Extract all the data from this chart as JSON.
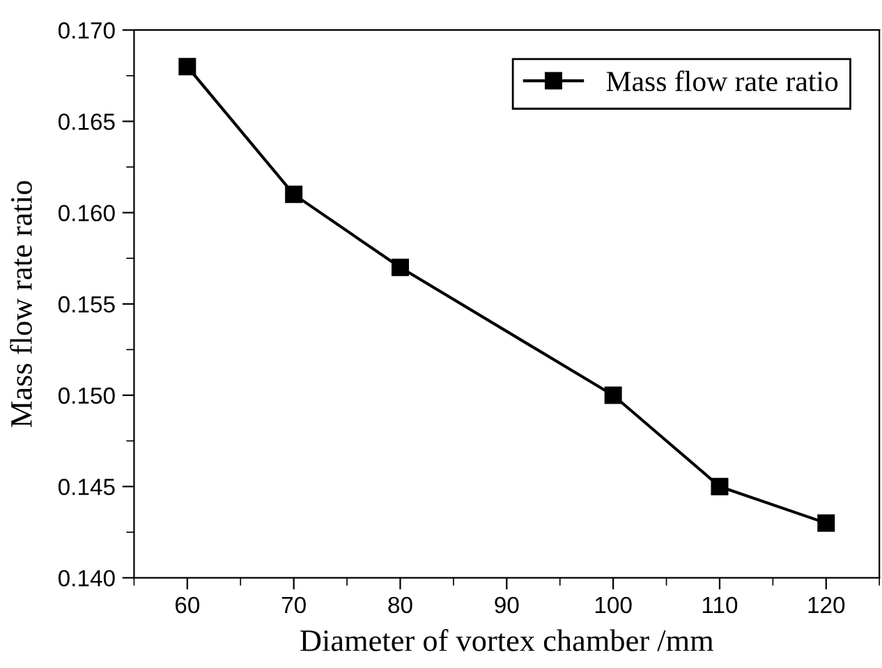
{
  "chart_data": {
    "type": "line",
    "xlabel": "Diameter of vortex chamber /mm",
    "ylabel": "Mass flow rate ratio",
    "x": [
      60,
      70,
      80,
      100,
      110,
      120
    ],
    "series": [
      {
        "name": "Mass flow rate ratio",
        "color": "#000000",
        "values": [
          0.168,
          0.161,
          0.157,
          0.15,
          0.145,
          0.143
        ]
      }
    ],
    "xlim": [
      55,
      125
    ],
    "xticks": [
      60,
      70,
      80,
      90,
      100,
      110,
      120
    ],
    "ylim": [
      0.14,
      0.17
    ],
    "yticks": [
      {
        "value": 0.14,
        "label": "0.140"
      },
      {
        "value": 0.145,
        "label": "0.145"
      },
      {
        "value": 0.15,
        "label": "0.150"
      },
      {
        "value": 0.155,
        "label": "0.155"
      },
      {
        "value": 0.16,
        "label": "0.160"
      },
      {
        "value": 0.165,
        "label": "0.165"
      },
      {
        "value": 0.17,
        "label": "0.170"
      }
    ],
    "marker": "square",
    "line_style": "solid",
    "legend": "top right",
    "grid": false
  }
}
